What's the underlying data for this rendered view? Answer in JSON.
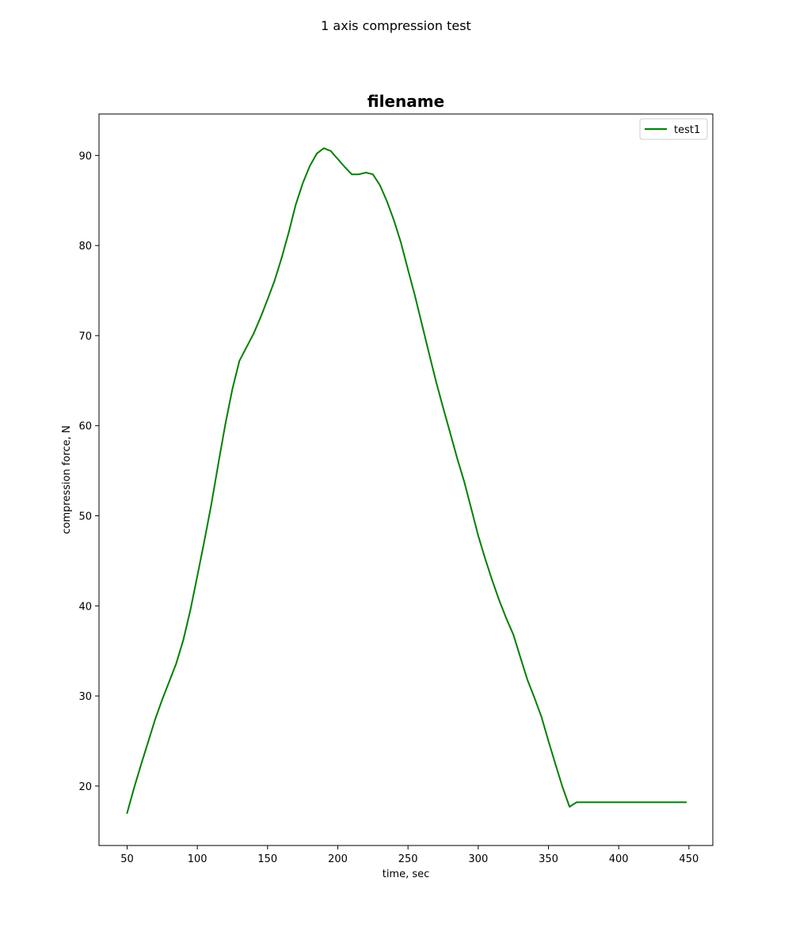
{
  "figure": {
    "suptitle": "1 axis compression test"
  },
  "chart_data": {
    "type": "line",
    "title": "filename",
    "xlabel": "time, sec",
    "ylabel": "compression force, N",
    "xlim": [
      30,
      467
    ],
    "ylim": [
      13.4,
      94.6
    ],
    "xticks": [
      50,
      100,
      150,
      200,
      250,
      300,
      350,
      400,
      450
    ],
    "yticks": [
      20,
      30,
      40,
      50,
      60,
      70,
      80,
      90
    ],
    "grid": false,
    "legend": {
      "position": "top-right"
    },
    "series": [
      {
        "name": "test1",
        "color": "#008000",
        "x": [
          50,
          55,
          60,
          65,
          70,
          75,
          80,
          85,
          90,
          95,
          100,
          105,
          110,
          115,
          120,
          125,
          130,
          135,
          140,
          145,
          150,
          155,
          160,
          165,
          170,
          175,
          180,
          185,
          190,
          195,
          200,
          205,
          210,
          215,
          220,
          225,
          230,
          235,
          240,
          245,
          250,
          255,
          260,
          265,
          270,
          275,
          280,
          285,
          290,
          295,
          300,
          305,
          310,
          315,
          320,
          325,
          330,
          335,
          340,
          345,
          350,
          355,
          360,
          365,
          370,
          375,
          380,
          385,
          390,
          395,
          400,
          405,
          410,
          415,
          420,
          425,
          430,
          435,
          440,
          445,
          448
        ],
        "y": [
          17.0,
          19.8,
          22.4,
          24.9,
          27.4,
          29.6,
          31.6,
          33.6,
          36.2,
          39.5,
          43.3,
          47.2,
          51.3,
          55.8,
          60.2,
          64.1,
          67.2,
          68.7,
          70.2,
          72.0,
          74.0,
          76.1,
          78.6,
          81.4,
          84.5,
          86.9,
          88.8,
          90.2,
          90.8,
          90.5,
          89.6,
          88.7,
          87.9,
          87.9,
          88.1,
          87.9,
          86.7,
          84.9,
          82.8,
          80.3,
          77.3,
          74.4,
          71.2,
          68.0,
          64.9,
          62.0,
          59.2,
          56.4,
          53.8,
          50.8,
          47.8,
          45.2,
          42.8,
          40.6,
          38.6,
          36.8,
          34.3,
          31.8,
          29.8,
          27.7,
          25.0,
          22.4,
          19.9,
          17.7,
          18.2,
          18.2,
          18.2,
          18.2,
          18.2,
          18.2,
          18.2,
          18.2,
          18.2,
          18.2,
          18.2,
          18.2,
          18.2,
          18.2,
          18.2,
          18.2,
          18.2
        ]
      }
    ]
  }
}
